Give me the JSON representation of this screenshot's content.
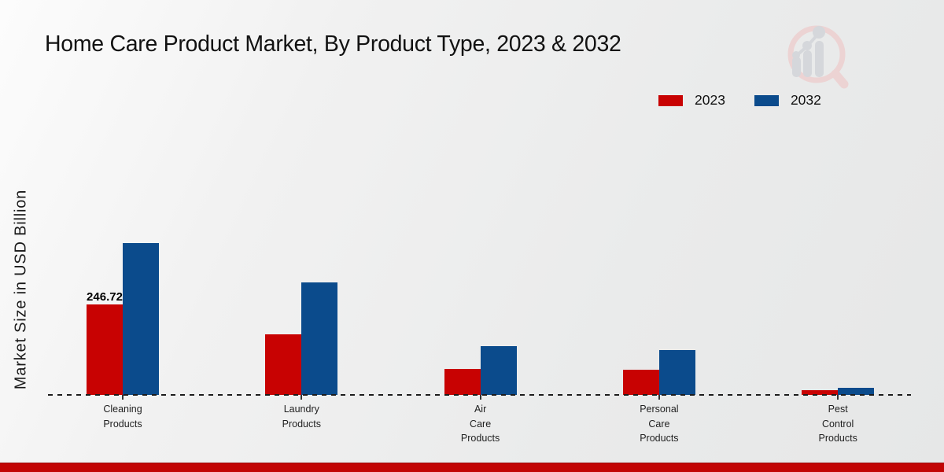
{
  "title": "Home Care Product Market, By Product Type, 2023 & 2032",
  "y_axis_label": "Market Size in USD Billion",
  "colors": {
    "series_2023": "#c80202",
    "series_2032": "#0b4b8c",
    "footer_bar": "#c20404",
    "watermark_ring": "#ecd3d3",
    "watermark_glyph": "#d5d7db"
  },
  "legend": {
    "items": [
      {
        "label": "2023",
        "color": "#c80202"
      },
      {
        "label": "2032",
        "color": "#0b4b8c"
      }
    ]
  },
  "watermark_icon": "magnifier-bar-chart-logo",
  "chart_data": {
    "type": "bar",
    "title": "Home Care Product Market, By Product Type, 2023 & 2032",
    "xlabel": "",
    "ylabel": "Market Size in USD Billion",
    "categories": [
      "Cleaning Products",
      "Laundry Products",
      "Air Care Products",
      "Personal Care Products",
      "Pest Control Products"
    ],
    "category_label_lines": [
      [
        "Cleaning",
        "Products"
      ],
      [
        "Laundry",
        "Products"
      ],
      [
        "Air",
        "Care",
        "Products"
      ],
      [
        "Personal",
        "Care",
        "Products"
      ],
      [
        "Pest",
        "Control",
        "Products"
      ]
    ],
    "series": [
      {
        "name": "2023",
        "color": "#c80202",
        "values": [
          246.72,
          165,
          71.5,
          69.5,
          12
        ]
      },
      {
        "name": "2032",
        "color": "#0b4b8c",
        "values": [
          415,
          308,
          134,
          123.5,
          19.5
        ]
      }
    ],
    "value_labels": [
      {
        "series": "2023",
        "category_index": 0,
        "text": "246.72"
      }
    ],
    "ylim": [
      0,
      450
    ],
    "grid": false,
    "baseline_style": "dashed",
    "legend_position": "top-right"
  }
}
